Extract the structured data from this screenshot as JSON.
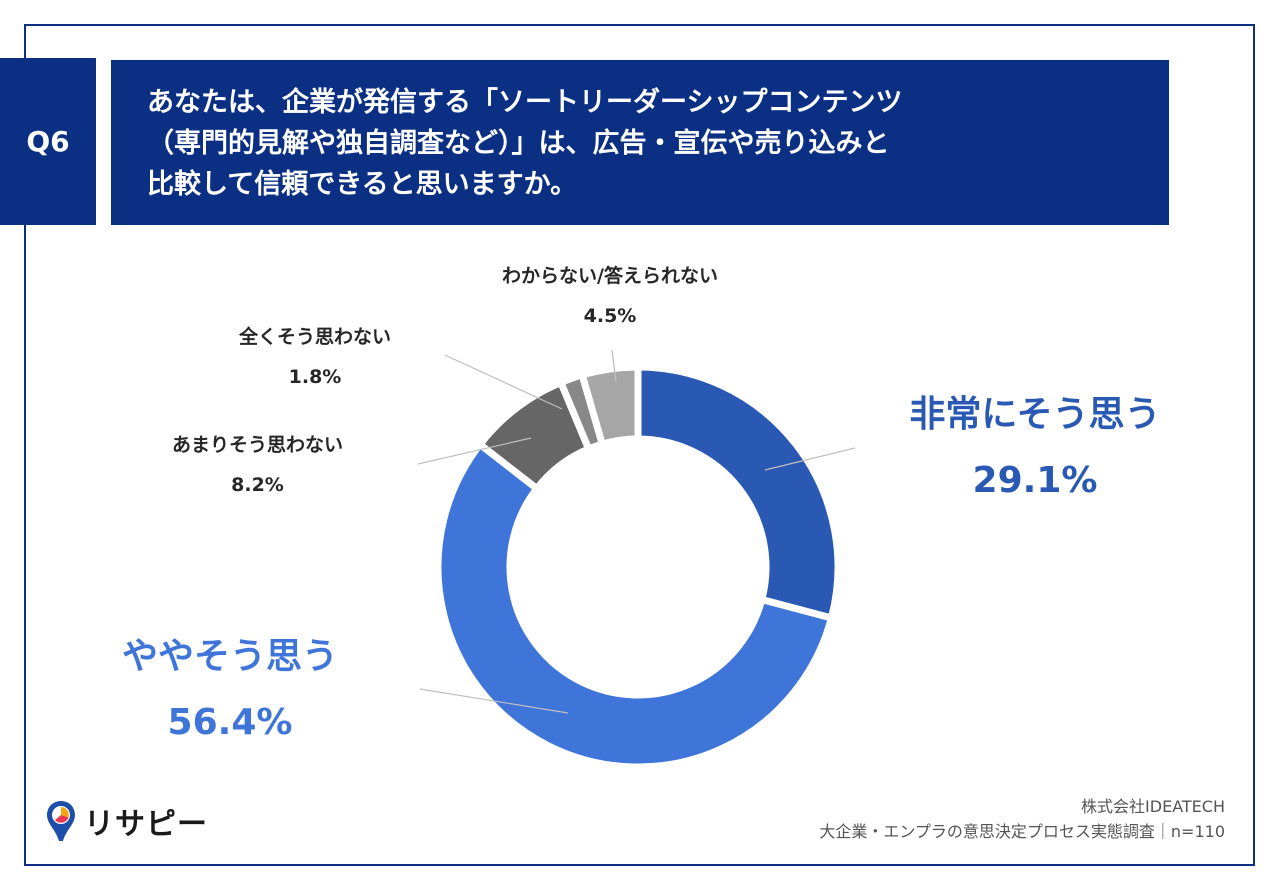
{
  "question": {
    "number": "Q6",
    "lines": [
      "あなたは、企業が発信する「ソートリーダーシップコンテンツ",
      "（専門的見解や独自調査など）」は、広告・宣伝や売り込みと",
      "比較して信頼できると思いますか。"
    ]
  },
  "chart_data": {
    "type": "pie",
    "donut": true,
    "labels": [
      "非常にそう思う",
      "ややそう思う",
      "あまりそう思わない",
      "全くそう思わない",
      "わからない/答えられない"
    ],
    "values": [
      29.1,
      56.4,
      8.2,
      1.8,
      4.5
    ],
    "value_labels": [
      "29.1%",
      "56.4%",
      "8.2%",
      "1.8%",
      "4.5%"
    ],
    "colors": [
      "#2a59b3",
      "#3f74d8",
      "#666666",
      "#888888",
      "#a6a6a6"
    ]
  },
  "brand": {
    "name": "リサピー"
  },
  "source": {
    "company": "株式会社IDEATECH",
    "survey": "大企業・エンプラの意思決定プロセス実態調査｜n=110"
  }
}
